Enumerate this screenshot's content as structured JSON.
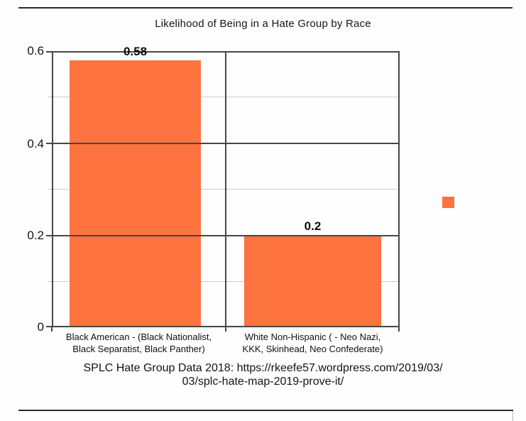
{
  "page": {
    "divider_color": "#2C2C2C"
  },
  "chart_data": {
    "type": "bar",
    "title": "Likelihood of Being in a Hate Group by Race",
    "categories": [
      "Black American - (Black Nationalist, Black Separatist, Black Panther)",
      "White Non-Hispanic ( - Neo Nazi, KKK, Skinhead, Neo Confederate)"
    ],
    "category_lines": [
      [
        "Black American - (Black Nationalist,",
        "Black Separatist, Black Panther)"
      ],
      [
        "White Non-Hispanic ( - Neo Nazi,",
        "KKK, Skinhead, Neo Confederate)"
      ]
    ],
    "values": [
      0.58,
      0.2
    ],
    "value_labels": [
      "0.58",
      "0.2"
    ],
    "ylim": [
      0,
      0.6
    ],
    "yticks": [
      "0",
      "0.2",
      "0.4",
      "0.6"
    ],
    "ytick_minor": [
      0.1,
      0.3,
      0.5
    ],
    "grid": "horizontal; dark major lines every 0.2, light minor lines every 0.1; vertical divider between categories",
    "legend_position": "right",
    "legend_label": "",
    "bar_color": "#FC7340",
    "axis_color": "#474747",
    "minor_grid_color": "#CCCCCC",
    "caption_lines": [
      "SPLC Hate Group Data 2018: https://rkeefe57.wordpress.com/2019/03/",
      "03/splc-hate-map-2019-prove-it/"
    ]
  }
}
